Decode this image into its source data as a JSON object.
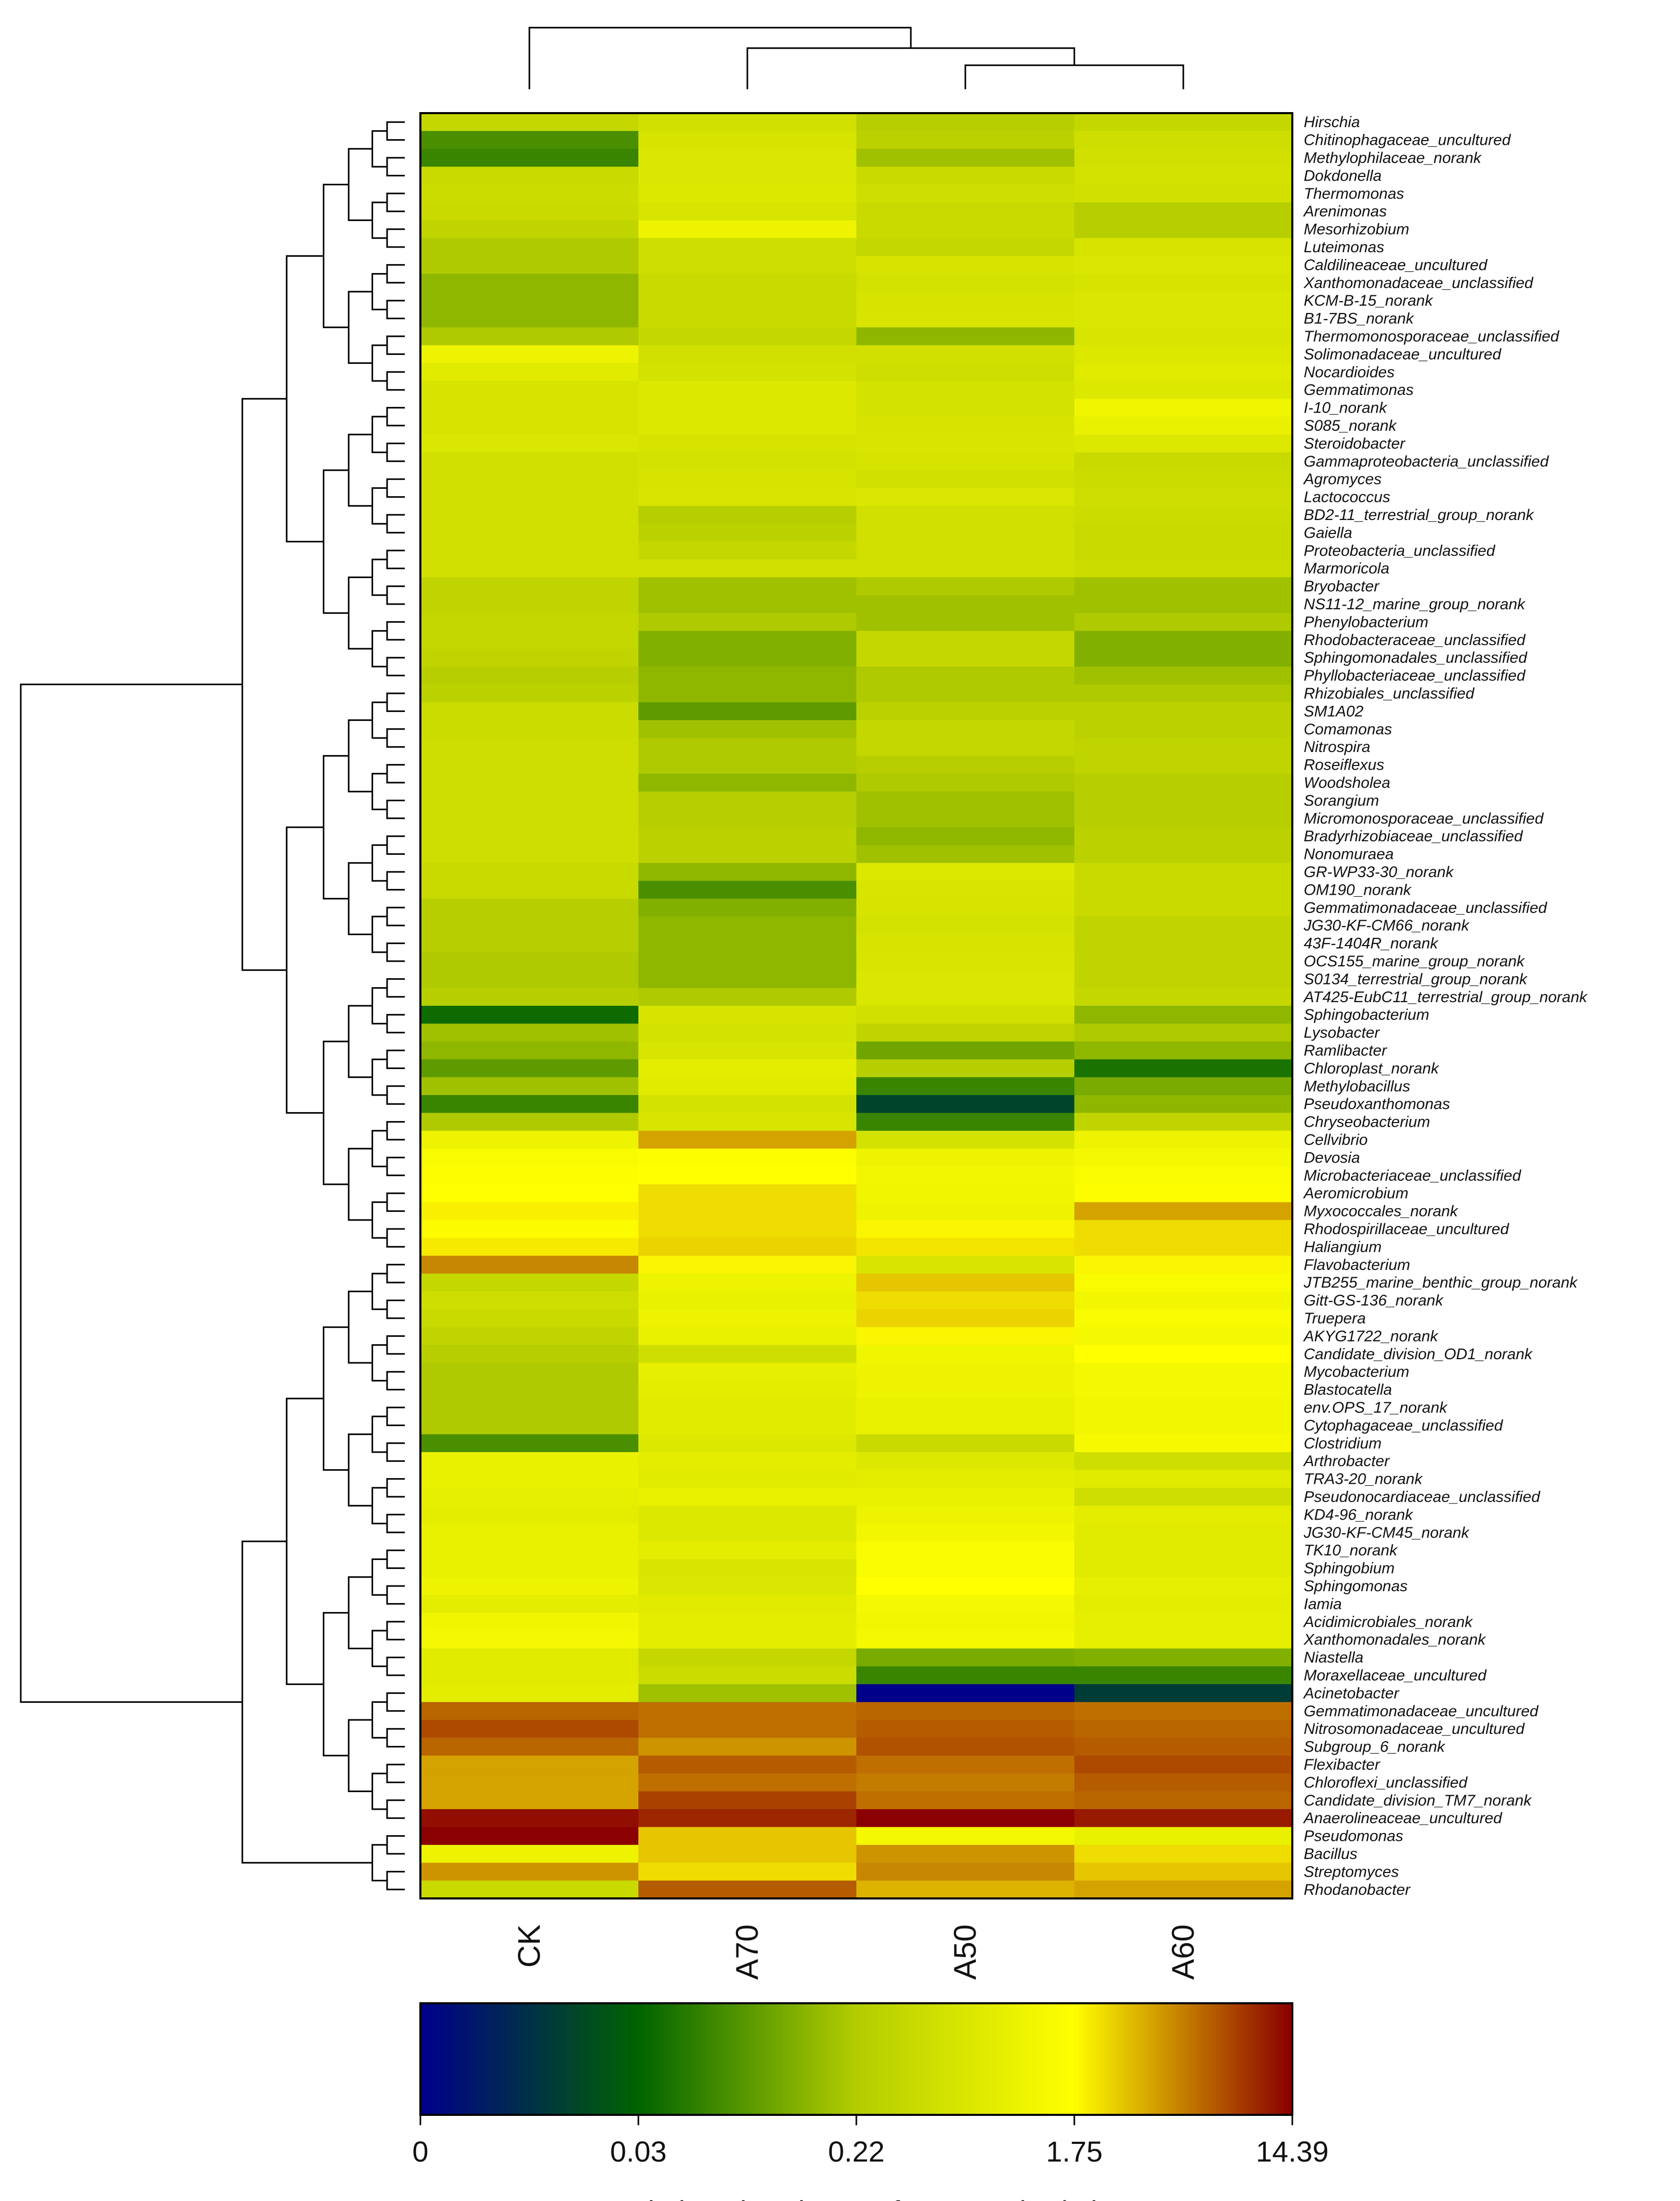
{
  "chart_data": {
    "type": "heatmap",
    "columns": [
      "CK",
      "A70",
      "A50",
      "A60"
    ],
    "rows": [
      "Hirschia",
      "Chitinophagaceae_uncultured",
      "Methylophilaceae_norank",
      "Dokdonella",
      "Thermomonas",
      "Arenimonas",
      "Mesorhizobium",
      "Luteimonas",
      "Caldilineaceae_uncultured",
      "Xanthomonadaceae_unclassified",
      "KCM-B-15_norank",
      "B1-7BS_norank",
      "Thermomonosporaceae_unclassified",
      "Solimonadaceae_uncultured",
      "Nocardioides",
      "Gemmatimonas",
      "I-10_norank",
      "S085_norank",
      "Steroidobacter",
      "Gammaproteobacteria_unclassified",
      "Agromyces",
      "Lactococcus",
      "BD2-11_terrestrial_group_norank",
      "Gaiella",
      "Proteobacteria_unclassified",
      "Marmoricola",
      "Bryobacter",
      "NS11-12_marine_group_norank",
      "Phenylobacterium",
      "Rhodobacteraceae_unclassified",
      "Sphingomonadales_unclassified",
      "Phyllobacteriaceae_unclassified",
      "Rhizobiales_unclassified",
      "SM1A02",
      "Comamonas",
      "Nitrospira",
      "Roseiflexus",
      "Woodsholea",
      "Sorangium",
      "Micromonosporaceae_unclassified",
      "Bradyrhizobiaceae_unclassified",
      "Nonomuraea",
      "GR-WP33-30_norank",
      "OM190_norank",
      "Gemmatimonadaceae_unclassified",
      "JG30-KF-CM66_norank",
      "43F-1404R_norank",
      "OCS155_marine_group_norank",
      "S0134_terrestrial_group_norank",
      "AT425-EubC11_terrestrial_group_norank",
      "Sphingobacterium",
      "Lysobacter",
      "Ramlibacter",
      "Chloroplast_norank",
      "Methylobacillus",
      "Pseudoxanthomonas",
      "Chryseobacterium",
      "Cellvibrio",
      "Devosia",
      "Microbacteriaceae_unclassified",
      "Aeromicrobium",
      "Myxococcales_norank",
      "Rhodospirillaceae_uncultured",
      "Haliangium",
      "Flavobacterium",
      "JTB255_marine_benthic_group_norank",
      "Gitt-GS-136_norank",
      "Truepera",
      "AKYG1722_norank",
      "Candidate_division_OD1_norank",
      "Mycobacterium",
      "Blastocatella",
      "env.OPS_17_norank",
      "Cytophagaceae_unclassified",
      "Clostridium",
      "Arthrobacter",
      "TRA3-20_norank",
      "Pseudonocardiaceae_unclassified",
      "KD4-96_norank",
      "JG30-KF-CM45_norank",
      "TK10_norank",
      "Sphingobium",
      "Sphingomonas",
      "Iamia",
      "Acidimicrobiales_norank",
      "Xanthomonadales_norank",
      "Niastella",
      "Moraxellaceae_uncultured",
      "Acinetobacter",
      "Gemmatimonadaceae_uncultured",
      "Nitrosomonadaceae_uncultured",
      "Subgroup_6_norank",
      "Flexibacter",
      "Chloroflexi_unclassified",
      "Candidate_division_TM7_norank",
      "Anaerolineaceae_uncultured",
      "Pseudomonas",
      "Bacillus",
      "Streptomyces",
      "Rhodanobacter"
    ],
    "values": [
      [
        0.55,
        0.75,
        0.4,
        0.55
      ],
      [
        0.12,
        0.85,
        0.45,
        0.7
      ],
      [
        0.1,
        0.95,
        0.3,
        0.75
      ],
      [
        0.6,
        0.95,
        0.6,
        0.8
      ],
      [
        0.65,
        1.0,
        0.7,
        0.75
      ],
      [
        0.6,
        0.9,
        0.6,
        0.4
      ],
      [
        0.5,
        1.5,
        0.6,
        0.4
      ],
      [
        0.35,
        0.7,
        0.55,
        0.85
      ],
      [
        0.35,
        0.7,
        0.85,
        0.95
      ],
      [
        0.25,
        0.6,
        0.8,
        0.85
      ],
      [
        0.25,
        0.6,
        0.85,
        0.95
      ],
      [
        0.25,
        0.6,
        0.9,
        0.95
      ],
      [
        0.35,
        0.55,
        0.25,
        0.9
      ],
      [
        1.5,
        0.75,
        0.75,
        1.0
      ],
      [
        1.1,
        0.8,
        0.7,
        1.1
      ],
      [
        0.85,
        1.0,
        0.8,
        1.0
      ],
      [
        0.85,
        1.0,
        0.8,
        1.6
      ],
      [
        0.85,
        1.0,
        0.85,
        1.4
      ],
      [
        0.95,
        0.85,
        0.9,
        1.0
      ],
      [
        0.75,
        0.8,
        0.85,
        0.6
      ],
      [
        0.75,
        0.85,
        0.75,
        0.65
      ],
      [
        0.75,
        0.9,
        0.95,
        0.7
      ],
      [
        0.75,
        0.4,
        0.75,
        0.65
      ],
      [
        0.75,
        0.45,
        0.75,
        0.6
      ],
      [
        0.75,
        0.55,
        0.75,
        0.6
      ],
      [
        0.75,
        0.75,
        0.75,
        0.65
      ],
      [
        0.5,
        0.3,
        0.35,
        0.3
      ],
      [
        0.5,
        0.3,
        0.3,
        0.3
      ],
      [
        0.55,
        0.35,
        0.3,
        0.35
      ],
      [
        0.55,
        0.22,
        0.55,
        0.22
      ],
      [
        0.5,
        0.22,
        0.55,
        0.22
      ],
      [
        0.4,
        0.25,
        0.35,
        0.3
      ],
      [
        0.45,
        0.25,
        0.35,
        0.35
      ],
      [
        0.65,
        0.15,
        0.45,
        0.45
      ],
      [
        0.65,
        0.3,
        0.55,
        0.45
      ],
      [
        0.7,
        0.35,
        0.55,
        0.5
      ],
      [
        0.7,
        0.35,
        0.4,
        0.5
      ],
      [
        0.7,
        0.25,
        0.35,
        0.4
      ],
      [
        0.7,
        0.4,
        0.3,
        0.4
      ],
      [
        0.7,
        0.4,
        0.3,
        0.4
      ],
      [
        0.7,
        0.45,
        0.25,
        0.45
      ],
      [
        0.7,
        0.45,
        0.3,
        0.45
      ],
      [
        0.6,
        0.25,
        1.0,
        0.6
      ],
      [
        0.6,
        0.12,
        0.9,
        0.6
      ],
      [
        0.4,
        0.22,
        0.85,
        0.6
      ],
      [
        0.4,
        0.25,
        0.8,
        0.5
      ],
      [
        0.4,
        0.25,
        0.85,
        0.5
      ],
      [
        0.35,
        0.25,
        0.9,
        0.5
      ],
      [
        0.35,
        0.25,
        0.95,
        0.5
      ],
      [
        0.4,
        0.35,
        0.95,
        0.55
      ],
      [
        0.06,
        0.85,
        0.75,
        0.25
      ],
      [
        0.3,
        0.8,
        0.5,
        0.35
      ],
      [
        0.25,
        0.9,
        0.18,
        0.25
      ],
      [
        0.15,
        1.2,
        0.4,
        0.07
      ],
      [
        0.3,
        1.1,
        0.1,
        0.2
      ],
      [
        0.1,
        0.8,
        0.025,
        0.25
      ],
      [
        0.35,
        0.9,
        0.1,
        0.5
      ],
      [
        1.5,
        4.5,
        0.8,
        1.5
      ],
      [
        2.0,
        2.2,
        1.5,
        1.8
      ],
      [
        2.2,
        2.3,
        1.7,
        2.0
      ],
      [
        2.3,
        3.0,
        1.6,
        2.2
      ],
      [
        2.6,
        3.0,
        1.5,
        4.5
      ],
      [
        2.4,
        3.0,
        2.5,
        3.0
      ],
      [
        2.7,
        3.2,
        2.8,
        3.0
      ],
      [
        5.5,
        2.5,
        0.9,
        2.5
      ],
      [
        0.55,
        1.5,
        3.5,
        2.0
      ],
      [
        0.7,
        1.4,
        3.0,
        1.7
      ],
      [
        0.6,
        1.5,
        3.2,
        2.0
      ],
      [
        0.5,
        1.4,
        2.5,
        1.8
      ],
      [
        0.4,
        0.7,
        1.6,
        2.3
      ],
      [
        0.35,
        1.3,
        1.5,
        1.8
      ],
      [
        0.35,
        1.2,
        1.5,
        1.8
      ],
      [
        0.35,
        1.1,
        1.4,
        1.7
      ],
      [
        0.35,
        1.1,
        1.4,
        1.7
      ],
      [
        0.12,
        1.0,
        0.6,
        1.9
      ],
      [
        1.4,
        1.2,
        1.0,
        0.7
      ],
      [
        1.4,
        1.1,
        1.2,
        1.1
      ],
      [
        1.3,
        1.4,
        1.4,
        0.7
      ],
      [
        1.2,
        1.0,
        1.5,
        1.2
      ],
      [
        1.4,
        1.0,
        1.7,
        1.1
      ],
      [
        1.4,
        1.2,
        2.0,
        1.1
      ],
      [
        1.4,
        0.9,
        2.0,
        1.1
      ],
      [
        1.5,
        0.95,
        2.3,
        1.3
      ],
      [
        1.2,
        1.1,
        1.8,
        1.2
      ],
      [
        1.6,
        1.2,
        1.7,
        1.3
      ],
      [
        1.8,
        1.2,
        1.8,
        1.3
      ],
      [
        1.1,
        0.55,
        0.2,
        0.22
      ],
      [
        1.1,
        0.65,
        0.1,
        0.1
      ],
      [
        1.2,
        0.3,
        0.0,
        0.02
      ],
      [
        7.0,
        6.5,
        7.0,
        6.5
      ],
      [
        8.5,
        6.5,
        7.5,
        7.0
      ],
      [
        7.0,
        5.0,
        8.0,
        7.5
      ],
      [
        4.5,
        7.5,
        6.5,
        8.5
      ],
      [
        4.5,
        6.5,
        6.0,
        7.5
      ],
      [
        4.5,
        9.0,
        6.5,
        7.0
      ],
      [
        13.0,
        11.0,
        14.39,
        12.0
      ],
      [
        14.39,
        3.5,
        1.8,
        1.4
      ],
      [
        1.5,
        3.5,
        5.0,
        3.0
      ],
      [
        5.0,
        3.0,
        5.5,
        3.5
      ],
      [
        0.6,
        7.5,
        4.0,
        4.5
      ]
    ],
    "colorbar": {
      "ticks": [
        "0",
        "0.03",
        "0.22",
        "1.75",
        "14.39"
      ],
      "colors": [
        "#00008b",
        "#006400",
        "#b4cd00",
        "#ffff00",
        "#8b0000"
      ],
      "label": "Relative abundance of community (%)"
    },
    "row_dendrogram": {
      "links": [
        [
          0,
          1,
          0.1
        ],
        [
          2,
          3,
          0.15
        ],
        [
          4,
          5,
          0.15
        ],
        [
          6,
          7,
          0.12
        ],
        [
          8,
          9,
          0.18
        ],
        [
          10,
          11,
          0.26
        ],
        [
          12,
          13,
          0.34
        ],
        [
          14,
          15,
          0.42
        ],
        [
          16,
          17,
          0.5
        ],
        [
          18,
          19,
          0.52
        ],
        [
          20,
          21,
          0.57
        ],
        [
          22,
          23,
          0.62
        ],
        [
          24,
          25,
          0.66
        ],
        [
          26,
          27,
          0.7
        ],
        [
          28,
          29,
          0.73
        ],
        [
          30,
          31,
          0.77
        ],
        [
          32,
          33,
          0.8
        ],
        [
          34,
          35,
          0.84
        ],
        [
          36,
          37,
          0.88
        ],
        [
          38,
          39,
          0.92
        ],
        [
          40,
          41,
          0.95
        ],
        [
          42,
          43,
          1.0
        ],
        [
          44,
          45,
          1.05
        ],
        [
          46,
          47,
          1.1
        ],
        [
          48,
          49,
          1.15
        ],
        [
          50,
          51,
          1.2
        ],
        [
          52,
          53,
          1.25
        ],
        [
          54,
          55,
          1.3
        ],
        [
          56,
          57,
          1.35
        ],
        [
          58,
          59,
          1.4
        ],
        [
          60,
          61,
          1.45
        ],
        [
          62,
          63,
          1.5
        ],
        [
          64,
          65,
          1.55
        ],
        [
          66,
          67,
          1.6
        ],
        [
          68,
          69,
          1.65
        ],
        [
          70,
          71,
          1.7
        ],
        [
          72,
          73,
          1.75
        ],
        [
          74,
          75,
          1.8
        ],
        [
          76,
          77,
          1.85
        ],
        [
          78,
          79,
          1.9
        ],
        [
          80,
          81,
          1.95
        ],
        [
          82,
          83,
          2.0
        ],
        [
          84,
          85,
          2.05
        ],
        [
          86,
          87,
          2.1
        ],
        [
          88,
          89,
          2.15
        ],
        [
          90,
          91,
          2.2
        ],
        [
          92,
          93,
          2.3
        ],
        [
          94,
          95,
          2.4
        ],
        [
          96,
          97,
          2.5
        ],
        [
          98,
          99,
          2.6
        ]
      ]
    },
    "column_dendrogram": {
      "order": [
        "CK",
        "A70",
        "A50",
        "A60"
      ],
      "links": [
        [
          "A50",
          "A60",
          0.35
        ],
        [
          "A70",
          "A50+A60",
          0.6
        ],
        [
          "CK",
          "A70+A50+A60",
          0.9
        ]
      ]
    }
  }
}
